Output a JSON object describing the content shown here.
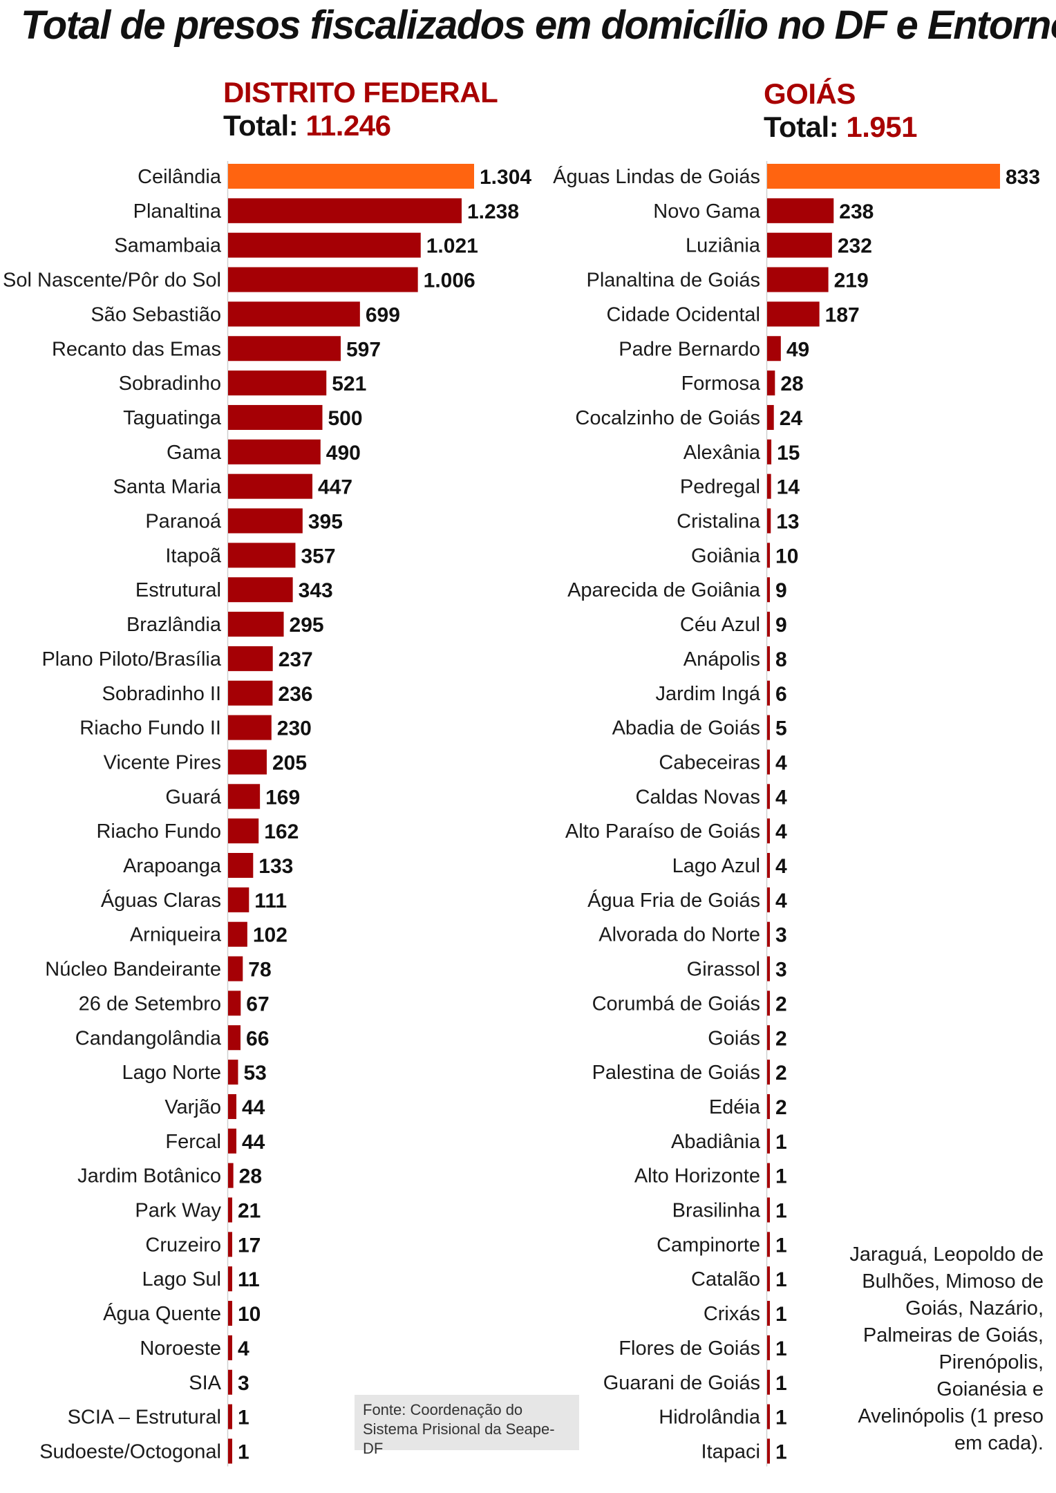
{
  "title": "Total de presos fiscalizados em domicílio no DF e Entorno",
  "panels": {
    "df": {
      "name": "DISTRITO FEDERAL",
      "total_label": "Total:",
      "total_value": "11.246"
    },
    "goias": {
      "name": "GOIÁS",
      "total_label": "Total:",
      "total_value": "1.951"
    }
  },
  "colors": {
    "highlight": "#ff6410",
    "bar": "#a50005",
    "accent_text": "#a80000"
  },
  "source": "Fonte: Coordenação do Sistema Prisional da Seape-DF",
  "footnote": "Jaraguá, Leopoldo de Bulhões, Mimoso de Goiás, Nazário, Palmeiras de Goiás, Pirenópolis, Goianésia e Avelinópolis (1 preso em cada).",
  "chart_data": [
    {
      "type": "bar",
      "orientation": "horizontal",
      "title": "DISTRITO FEDERAL",
      "subtitle": "Total: 11.246",
      "categories": [
        "Ceilândia",
        "Planaltina",
        "Samambaia",
        "Sol Nascente/Pôr do Sol",
        "São Sebastião",
        "Recanto das Emas",
        "Sobradinho",
        "Taguatinga",
        "Gama",
        "Santa Maria",
        "Paranoá",
        "Itapoã",
        "Estrutural",
        "Brazlândia",
        "Plano Piloto/Brasília",
        "Sobradinho II",
        "Riacho Fundo II",
        "Vicente Pires",
        "Guará",
        "Riacho Fundo",
        "Arapoanga",
        "Águas Claras",
        "Arniqueira",
        "Núcleo Bandeirante",
        "26 de Setembro",
        "Candangolândia",
        "Lago Norte",
        "Varjão",
        "Fercal",
        "Jardim Botânico",
        "Park Way",
        "Cruzeiro",
        "Lago Sul",
        "Água Quente",
        "Noroeste",
        "SIA",
        "SCIA – Estrutural",
        "Sudoeste/Octogonal"
      ],
      "values": [
        1304,
        1238,
        1021,
        1006,
        699,
        597,
        521,
        500,
        490,
        447,
        395,
        357,
        343,
        295,
        237,
        236,
        230,
        205,
        169,
        162,
        133,
        111,
        102,
        78,
        67,
        66,
        53,
        44,
        44,
        28,
        21,
        17,
        11,
        10,
        4,
        3,
        1,
        1
      ],
      "value_labels": [
        "1.304",
        "1.238",
        "1.021",
        "1.006",
        "699",
        "597",
        "521",
        "500",
        "490",
        "447",
        "395",
        "357",
        "343",
        "295",
        "237",
        "236",
        "230",
        "205",
        "169",
        "162",
        "133",
        "111",
        "102",
        "78",
        "67",
        "66",
        "53",
        "44",
        "44",
        "28",
        "21",
        "17",
        "11",
        "10",
        "4",
        "3",
        "1",
        "1"
      ],
      "highlight_index": 0,
      "xlim": [
        0,
        1304
      ]
    },
    {
      "type": "bar",
      "orientation": "horizontal",
      "title": "GOIÁS",
      "subtitle": "Total: 1.951",
      "categories": [
        "Águas Lindas de Goiás",
        "Novo Gama",
        "Luziânia",
        "Planaltina de Goiás",
        "Cidade Ocidental",
        "Padre Bernardo",
        "Formosa",
        "Cocalzinho de Goiás",
        "Alexânia",
        "Pedregal",
        "Cristalina",
        "Goiânia",
        "Aparecida de Goiânia",
        "Céu Azul",
        "Anápolis",
        "Jardim Ingá",
        "Abadia de Goiás",
        "Cabeceiras",
        "Caldas Novas",
        "Alto Paraíso de Goiás",
        "Lago Azul",
        "Água Fria de Goiás",
        "Alvorada do Norte",
        "Girassol",
        "Corumbá de Goiás",
        "Goiás",
        "Palestina de Goiás",
        "Edéia",
        "Abadiânia",
        "Alto Horizonte",
        "Brasilinha",
        "Campinorte",
        "Catalão",
        "Crixás",
        "Flores de Goiás",
        "Guarani de Goiás",
        "Hidrolândia",
        "Itapaci"
      ],
      "values": [
        833,
        238,
        232,
        219,
        187,
        49,
        28,
        24,
        15,
        14,
        13,
        10,
        9,
        9,
        8,
        6,
        5,
        4,
        4,
        4,
        4,
        4,
        3,
        3,
        2,
        2,
        2,
        2,
        1,
        1,
        1,
        1,
        1,
        1,
        1,
        1,
        1,
        1
      ],
      "value_labels": [
        "833",
        "238",
        "232",
        "219",
        "187",
        "49",
        "28",
        "24",
        "15",
        "14",
        "13",
        "10",
        "9",
        "9",
        "8",
        "6",
        "5",
        "4",
        "4",
        "4",
        "4",
        "4",
        "3",
        "3",
        "2",
        "2",
        "2",
        "2",
        "1",
        "1",
        "1",
        "1",
        "1",
        "1",
        "1",
        "1",
        "1",
        "1"
      ],
      "highlight_index": 0,
      "xlim": [
        0,
        833
      ]
    }
  ]
}
